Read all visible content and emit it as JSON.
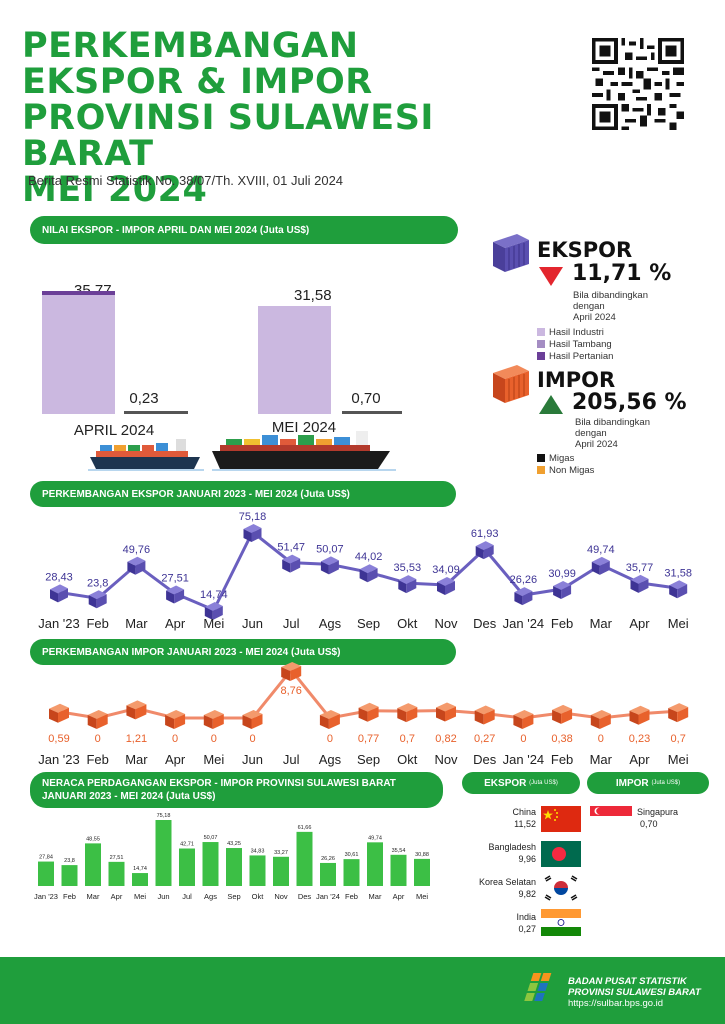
{
  "header": {
    "title_lines": [
      "PERKEMBANGAN",
      "EKSPOR & IMPOR",
      "PROVINSI SULAWESI BARAT",
      "MEI 2024"
    ],
    "subtitle": "Berita Resmi Statistik No. 38/07/Th. XVIII, 01 Juli 2024"
  },
  "section1": {
    "heading": "NILAI EKSPOR - IMPOR APRIL DAN MEI 2024 (Juta US$)",
    "april": {
      "label": "APRIL 2024",
      "ekspor": "35,77",
      "impor": "0,23"
    },
    "mei": {
      "label": "MEI 2024",
      "ekspor": "31,58",
      "impor": "0,70"
    }
  },
  "ekspor_summary": {
    "title": "EKSPOR",
    "direction": "down",
    "pct": "11,71 %",
    "note_lines": [
      "Bila dibandingkan",
      "dengan",
      "April 2024"
    ],
    "legend": [
      {
        "label": "Hasil Industri",
        "color": "#cbb8e0"
      },
      {
        "label": "Hasil Tambang",
        "color": "#a48dc3"
      },
      {
        "label": "Hasil Pertanian",
        "color": "#6b3f98"
      }
    ]
  },
  "impor_summary": {
    "title": "IMPOR",
    "direction": "up",
    "pct": "205,56 %",
    "note_lines": [
      "Bila dibandingkan",
      "dengan",
      "April 2024"
    ],
    "legend": [
      {
        "label": "Migas",
        "color": "#111111"
      },
      {
        "label": "Non Migas",
        "color": "#f0a030"
      }
    ]
  },
  "months": [
    "Jan '23",
    "Feb",
    "Mar",
    "Apr",
    "Mei",
    "Jun",
    "Jul",
    "Ags",
    "Sep",
    "Okt",
    "Nov",
    "Des",
    "Jan '24",
    "Feb",
    "Mar",
    "Apr",
    "Mei"
  ],
  "section2": {
    "heading": "PERKEMBANGAN EKSPOR JANUARI 2023 - MEI 2024 (Juta US$)",
    "labels": [
      "28,43",
      "23,8",
      "49,76",
      "27,51",
      "14,74",
      "75,18",
      "51,47",
      "50,07",
      "44,02",
      "35,53",
      "34,09",
      "61,93",
      "26,26",
      "30,99",
      "49,74",
      "35,77",
      "31,58"
    ],
    "values": [
      28.43,
      23.8,
      49.76,
      27.51,
      14.74,
      75.18,
      51.47,
      50.07,
      44.02,
      35.53,
      34.09,
      61.93,
      26.26,
      30.99,
      49.74,
      35.77,
      31.58
    ]
  },
  "section3": {
    "heading": "PERKEMBANGAN IMPOR JANUARI 2023 - MEI 2024 (Juta US$)",
    "labels": [
      "0,59",
      "0",
      "1,21",
      "0",
      "0",
      "0",
      "8,76",
      "0",
      "0,77",
      "0,7",
      "0,82",
      "0,27",
      "0",
      "0,38",
      "0",
      "0,23",
      "0,7"
    ],
    "values": [
      0.59,
      0,
      1.21,
      0,
      0,
      0,
      8.76,
      0,
      0.77,
      0.7,
      0.82,
      0.27,
      0,
      0.38,
      0,
      0.23,
      0.7
    ]
  },
  "section4": {
    "heading_lines": [
      "NERACA PERDAGANGAN EKSPOR - IMPOR PROVINSI SULAWESI BARAT",
      "JANUARI 2023 - MEI 2024 (Juta US$)"
    ],
    "labels": [
      "27,84",
      "23,8",
      "48,55",
      "27,51",
      "14,74",
      "75,18",
      "42,71",
      "50,07",
      "43,25",
      "34,83",
      "33,27",
      "61,66",
      "26,26",
      "30,61",
      "49,74",
      "35,54",
      "30,88"
    ],
    "values": [
      27.84,
      23.8,
      48.55,
      27.51,
      14.74,
      75.18,
      42.71,
      50.07,
      43.25,
      34.83,
      33.27,
      61.66,
      26.26,
      30.61,
      49.74,
      35.54,
      30.88
    ]
  },
  "chart_data": [
    {
      "type": "bar",
      "title": "NILAI EKSPOR - IMPOR APRIL DAN MEI 2024 (Juta US$)",
      "categories": [
        "APRIL 2024",
        "MEI 2024"
      ],
      "series": [
        {
          "name": "EKSPOR",
          "values": [
            35.77,
            31.58
          ]
        },
        {
          "name": "IMPOR",
          "values": [
            0.23,
            0.7
          ]
        }
      ]
    },
    {
      "type": "line",
      "title": "PERKEMBANGAN EKSPOR JANUARI 2023 - MEI 2024 (Juta US$)",
      "categories": [
        "Jan '23",
        "Feb",
        "Mar",
        "Apr",
        "Mei",
        "Jun",
        "Jul",
        "Ags",
        "Sep",
        "Okt",
        "Nov",
        "Des",
        "Jan '24",
        "Feb",
        "Mar",
        "Apr",
        "Mei"
      ],
      "values": [
        28.43,
        23.8,
        49.76,
        27.51,
        14.74,
        75.18,
        51.47,
        50.07,
        44.02,
        35.53,
        34.09,
        61.93,
        26.26,
        30.99,
        49.74,
        35.77,
        31.58
      ]
    },
    {
      "type": "line",
      "title": "PERKEMBANGAN IMPOR JANUARI 2023 - MEI 2024 (Juta US$)",
      "categories": [
        "Jan '23",
        "Feb",
        "Mar",
        "Apr",
        "Mei",
        "Jun",
        "Jul",
        "Ags",
        "Sep",
        "Okt",
        "Nov",
        "Des",
        "Jan '24",
        "Feb",
        "Mar",
        "Apr",
        "Mei"
      ],
      "values": [
        0.59,
        0,
        1.21,
        0,
        0,
        0,
        8.76,
        0,
        0.77,
        0.7,
        0.82,
        0.27,
        0,
        0.38,
        0,
        0.23,
        0.7
      ]
    },
    {
      "type": "bar",
      "title": "NERACA PERDAGANGAN EKSPOR - IMPOR PROVINSI SULAWESI BARAT JANUARI 2023 - MEI 2024 (Juta US$)",
      "categories": [
        "Jan '23",
        "Feb",
        "Mar",
        "Apr",
        "Mei",
        "Jun",
        "Jul",
        "Ags",
        "Sep",
        "Okt",
        "Nov",
        "Des",
        "Jan '24",
        "Feb",
        "Mar",
        "Apr",
        "Mei"
      ],
      "values": [
        27.84,
        23.8,
        48.55,
        27.51,
        14.74,
        75.18,
        42.71,
        50.07,
        43.25,
        34.83,
        33.27,
        61.66,
        26.26,
        30.61,
        49.74,
        35.54,
        30.88
      ]
    }
  ],
  "partners": {
    "ekspor_heading": "EKSPOR",
    "ekspor_unit": "(Juta US$)",
    "impor_heading": "IMPOR",
    "impor_unit": "(Juta US$)",
    "ekspor": [
      {
        "country": "China",
        "value": "11,52"
      },
      {
        "country": "Bangladesh",
        "value": "9,96"
      },
      {
        "country": "Korea Selatan",
        "value": "9,82"
      },
      {
        "country": "India",
        "value": "0,27"
      }
    ],
    "impor": [
      {
        "country": "Singapura",
        "value": "0,70"
      }
    ]
  },
  "footer": {
    "org_line1": "BADAN PUSAT STATISTIK",
    "org_line2": "PROVINSI SULAWESI BARAT",
    "url": "https://sulbar.bps.go.id"
  },
  "colors": {
    "brand_green": "#1f9e3c",
    "ekspor_purple": "#5a4fb0",
    "impor_orange": "#e8612c",
    "bar_light": "#cbb8e0",
    "bar_dark": "#6b3f98",
    "neraca_green": "#3cbf45"
  }
}
